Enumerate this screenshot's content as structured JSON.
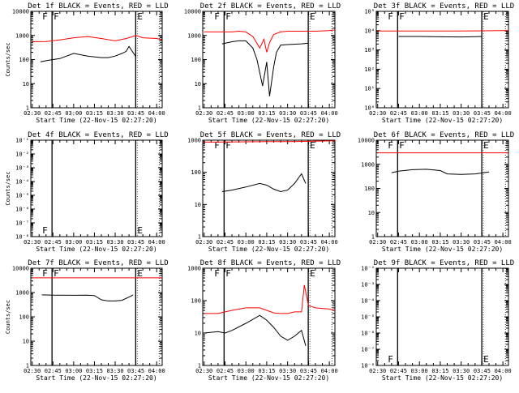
{
  "chart_data": [
    {
      "type": "line",
      "title": "Det 1f BLACK = Events, RED = LLD",
      "xlabel": "Start Time (22-Nov-15 02:27:20)",
      "ylabel": "Counts/sec",
      "y_scale": "log",
      "ylim": [
        1,
        10000
      ],
      "y_tick_labels": [
        "1",
        "10",
        "100",
        "1000",
        "10000"
      ],
      "x_tick_labels": [
        "02:30",
        "02:45",
        "03:00",
        "03:15",
        "03:30",
        "03:45",
        "04:00"
      ],
      "markers": [
        "F",
        "E"
      ],
      "series": [
        {
          "color": "#000000",
          "x": [
            "02:36",
            "02:40",
            "02:45",
            "02:50",
            "03:00",
            "03:10",
            "03:20",
            "03:25",
            "03:30",
            "03:35",
            "03:38",
            "03:40",
            "03:45"
          ],
          "y": [
            80,
            90,
            100,
            110,
            180,
            140,
            120,
            120,
            140,
            180,
            220,
            350,
            130
          ]
        },
        {
          "color": "#ff0000",
          "x": [
            "02:30",
            "02:40",
            "02:50",
            "03:00",
            "03:10",
            "03:20",
            "03:30",
            "03:38",
            "03:45",
            "03:50",
            "04:00",
            "04:04"
          ],
          "y": [
            550,
            560,
            650,
            800,
            900,
            750,
            600,
            750,
            1000,
            800,
            750,
            650
          ]
        }
      ]
    },
    {
      "type": "line",
      "title": "Det 2f BLACK = Events, RED = LLD",
      "xlabel": "Start Time (22-Nov-15 02:27:20)",
      "ylabel": "",
      "y_scale": "log",
      "ylim": [
        1,
        10000
      ],
      "y_tick_labels": [
        "1",
        "10",
        "100",
        "1000",
        "10000"
      ],
      "x_tick_labels": [
        "02:30",
        "02:45",
        "03:00",
        "03:15",
        "03:30",
        "03:45",
        "04:00"
      ],
      "markers": [
        "F",
        "E"
      ],
      "series": [
        {
          "color": "#000000",
          "x": [
            "02:43",
            "02:50",
            "02:55",
            "03:00",
            "03:05",
            "03:08",
            "03:12",
            "03:15",
            "03:17",
            "03:20",
            "03:22",
            "03:25",
            "03:30",
            "03:40",
            "03:45"
          ],
          "y": [
            450,
            550,
            600,
            600,
            300,
            100,
            8,
            80,
            3,
            50,
            200,
            400,
            420,
            450,
            480
          ]
        },
        {
          "color": "#ff0000",
          "x": [
            "02:30",
            "02:40",
            "02:50",
            "02:55",
            "03:00",
            "03:05",
            "03:10",
            "03:13",
            "03:15",
            "03:17",
            "03:20",
            "03:25",
            "03:30",
            "03:40",
            "03:50",
            "04:00",
            "04:04"
          ],
          "y": [
            1400,
            1400,
            1400,
            1500,
            1400,
            900,
            300,
            700,
            200,
            500,
            1100,
            1400,
            1500,
            1500,
            1500,
            1600,
            1700
          ]
        }
      ]
    },
    {
      "type": "line",
      "title": "Det 3f BLACK = Events, RED = LLD",
      "xlabel": "Start Time (22-Nov-15 02:27:20)",
      "ylabel": "",
      "y_scale": "log",
      "ylim": [
        1,
        100000
      ],
      "y_tick_labels": [
        "10⁰",
        "10¹",
        "10²",
        "10³",
        "10⁴",
        "10⁵"
      ],
      "x_tick_labels": [
        "02:30",
        "02:45",
        "03:00",
        "03:15",
        "03:30",
        "03:45",
        "04:00"
      ],
      "markers": [
        "F",
        "E"
      ],
      "series": [
        {
          "color": "#000000",
          "x": [
            "02:45",
            "03:00",
            "03:15",
            "03:30",
            "03:40",
            "03:45"
          ],
          "y": [
            5000,
            5000,
            4800,
            4700,
            4900,
            5000
          ]
        },
        {
          "color": "#ff0000",
          "x": [
            "02:30",
            "02:45",
            "03:00",
            "03:15",
            "03:30",
            "03:45",
            "04:00",
            "04:04"
          ],
          "y": [
            9500,
            9500,
            9500,
            9500,
            9600,
            9800,
            10000,
            10000
          ]
        }
      ]
    },
    {
      "type": "line",
      "title": "Det 4f BLACK = Events, RED = LLD",
      "xlabel": "Start Time (22-Nov-15 02:27:20)",
      "ylabel": "Counts/sec",
      "y_scale": "log",
      "ylim": [
        1e-08,
        0.1
      ],
      "y_tick_labels": [
        "10⁻⁸",
        "10⁻⁷",
        "10⁻⁶",
        "10⁻⁵",
        "10⁻⁴",
        "10⁻³",
        "10⁻²",
        "10⁻¹"
      ],
      "x_tick_labels": [
        "02:30",
        "02:45",
        "03:00",
        "03:15",
        "03:30",
        "03:45",
        "04:00"
      ],
      "markers": [
        "F",
        "E"
      ],
      "series": []
    },
    {
      "type": "line",
      "title": "Det 5f BLACK = Events, RED = LLD",
      "xlabel": "Start Time (22-Nov-15 02:27:20)",
      "ylabel": "",
      "y_scale": "log",
      "ylim": [
        1,
        1000
      ],
      "y_tick_labels": [
        "1",
        "10",
        "100",
        "1000"
      ],
      "x_tick_labels": [
        "02:30",
        "02:45",
        "03:00",
        "03:15",
        "03:30",
        "03:45",
        "04:00"
      ],
      "markers": [
        "F",
        "E"
      ],
      "series": [
        {
          "color": "#000000",
          "x": [
            "02:43",
            "02:50",
            "03:00",
            "03:10",
            "03:15",
            "03:20",
            "03:25",
            "03:30",
            "03:35",
            "03:40",
            "03:43"
          ],
          "y": [
            25,
            28,
            35,
            45,
            40,
            30,
            25,
            28,
            45,
            90,
            45
          ]
        },
        {
          "color": "#ff0000",
          "x": [
            "02:30",
            "02:45",
            "03:00",
            "03:15",
            "03:30",
            "03:45",
            "04:00",
            "04:04"
          ],
          "y": [
            870,
            880,
            890,
            900,
            900,
            920,
            950,
            960
          ]
        }
      ]
    },
    {
      "type": "line",
      "title": "Det 6f BLACK = Events, RED = LLD",
      "xlabel": "Start Time (22-Nov-15 02:27:20)",
      "ylabel": "",
      "y_scale": "log",
      "ylim": [
        1,
        10000
      ],
      "y_tick_labels": [
        "1",
        "10",
        "100",
        "1000",
        "10000"
      ],
      "x_tick_labels": [
        "02:30",
        "02:45",
        "03:00",
        "03:15",
        "03:30",
        "03:45",
        "04:00"
      ],
      "markers": [
        "F",
        "E"
      ],
      "series": [
        {
          "color": "#000000",
          "x": [
            "02:40",
            "02:45",
            "02:55",
            "03:05",
            "03:15",
            "03:20",
            "03:30",
            "03:40",
            "03:50"
          ],
          "y": [
            450,
            520,
            600,
            620,
            550,
            400,
            380,
            400,
            480
          ]
        },
        {
          "color": "#ff0000",
          "x": [
            "02:30",
            "02:45",
            "03:00",
            "03:15",
            "03:30",
            "03:45",
            "04:00",
            "04:04"
          ],
          "y": [
            3000,
            3000,
            3000,
            3000,
            3000,
            3000,
            3000,
            3000
          ]
        }
      ]
    },
    {
      "type": "line",
      "title": "Det 7f BLACK = Events, RED = LLD",
      "xlabel": "Start Time (22-Nov-15 02:27:20)",
      "ylabel": "Counts/sec",
      "y_scale": "log",
      "ylim": [
        1,
        10000
      ],
      "y_tick_labels": [
        "1",
        "10",
        "100",
        "1000",
        "10000"
      ],
      "x_tick_labels": [
        "02:30",
        "02:45",
        "03:00",
        "03:15",
        "03:30",
        "03:45",
        "04:00"
      ],
      "markers": [
        "F",
        "E"
      ],
      "series": [
        {
          "color": "#000000",
          "x": [
            "02:37",
            "02:45",
            "03:00",
            "03:10",
            "03:15",
            "03:20",
            "03:25",
            "03:30",
            "03:35",
            "03:40",
            "03:43"
          ],
          "y": [
            800,
            780,
            770,
            780,
            750,
            500,
            450,
            450,
            480,
            650,
            800
          ]
        },
        {
          "color": "#ff0000",
          "x": [
            "02:30",
            "02:45",
            "03:00",
            "03:15",
            "03:30",
            "03:45",
            "04:00",
            "04:04"
          ],
          "y": [
            4000,
            4000,
            4000,
            4000,
            4000,
            4000,
            4000,
            4000
          ]
        }
      ]
    },
    {
      "type": "line",
      "title": "Det 8f BLACK = Events, RED = LLD",
      "xlabel": "Start Time (22-Nov-15 02:27:20)",
      "ylabel": "",
      "y_scale": "log",
      "ylim": [
        1,
        1000
      ],
      "y_tick_labels": [
        "1",
        "10",
        "100",
        "1000"
      ],
      "x_tick_labels": [
        "02:30",
        "02:45",
        "03:00",
        "03:15",
        "03:30",
        "03:45",
        "04:00"
      ],
      "markers": [
        "F",
        "E"
      ],
      "series": [
        {
          "color": "#000000",
          "x": [
            "02:30",
            "02:40",
            "02:45",
            "02:50",
            "03:00",
            "03:10",
            "03:15",
            "03:20",
            "03:25",
            "03:30",
            "03:35",
            "03:40",
            "03:43"
          ],
          "y": [
            10,
            11,
            10,
            12,
            20,
            35,
            25,
            15,
            8,
            6,
            8,
            12,
            4
          ]
        },
        {
          "color": "#ff0000",
          "x": [
            "02:30",
            "02:40",
            "02:45",
            "02:50",
            "03:00",
            "03:10",
            "03:15",
            "03:20",
            "03:25",
            "03:30",
            "03:35",
            "03:40",
            "03:42",
            "03:45",
            "03:50",
            "04:00",
            "04:04"
          ],
          "y": [
            40,
            40,
            45,
            50,
            60,
            60,
            50,
            42,
            40,
            40,
            45,
            45,
            300,
            70,
            60,
            55,
            50
          ]
        }
      ]
    },
    {
      "type": "line",
      "title": "Det 9f BLACK = Events, RED = LLD",
      "xlabel": "Start Time (22-Nov-15 02:27:20)",
      "ylabel": "",
      "y_scale": "log",
      "ylim": [
        1e-08,
        0.01
      ],
      "y_tick_labels": [
        "10⁻⁸",
        "10⁻⁷",
        "10⁻⁶",
        "10⁻⁵",
        "10⁻⁴",
        "10⁻³",
        "10⁻²"
      ],
      "x_tick_labels": [
        "02:30",
        "02:45",
        "03:00",
        "03:15",
        "03:30",
        "03:45",
        "04:00"
      ],
      "markers": [
        "F",
        "E"
      ],
      "series": []
    }
  ]
}
